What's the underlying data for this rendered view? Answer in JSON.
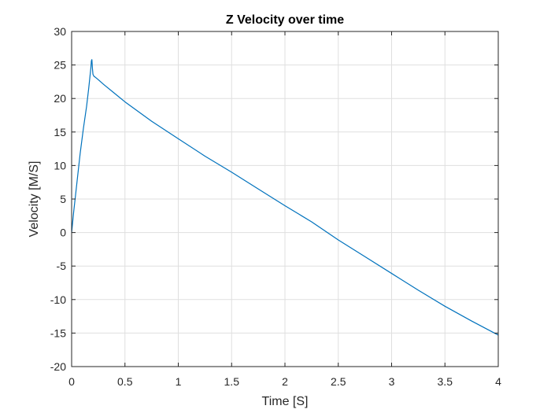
{
  "chart_data": {
    "type": "line",
    "title": "Z Velocity over time",
    "xlabel": "Time [S]",
    "ylabel": "Velocity [M/S]",
    "xlim": [
      0,
      4
    ],
    "ylim": [
      -20,
      30
    ],
    "grid": true,
    "legend": "none",
    "x_ticks": [
      "0",
      "0.5",
      "1",
      "1.5",
      "2",
      "2.5",
      "3",
      "3.5",
      "4"
    ],
    "y_ticks": [
      "30",
      "25",
      "20",
      "15",
      "10",
      "5",
      "0",
      "-5",
      "-10",
      "-15",
      "-20"
    ],
    "series": [
      {
        "color": "#0072BD",
        "x": [
          0,
          0.02,
          0.05,
          0.08,
          0.11,
          0.14,
          0.16,
          0.17,
          0.18,
          0.185,
          0.19,
          0.195,
          0.2,
          0.21,
          0.22,
          0.25,
          0.3,
          0.4,
          0.5,
          0.75,
          1.0,
          1.25,
          1.5,
          1.75,
          2.0,
          2.25,
          2.5,
          2.75,
          3.0,
          3.25,
          3.5,
          3.75,
          4.0
        ],
        "y": [
          0,
          3.2,
          7.5,
          11.8,
          15.5,
          18.8,
          21.5,
          23.0,
          24.5,
          25.6,
          25.8,
          24.5,
          23.6,
          23.3,
          23.2,
          22.8,
          22.1,
          20.8,
          19.5,
          16.6,
          14.0,
          11.4,
          9.0,
          6.5,
          4.0,
          1.6,
          -1.1,
          -3.6,
          -6.1,
          -8.6,
          -11.0,
          -13.2,
          -15.3
        ]
      }
    ]
  }
}
